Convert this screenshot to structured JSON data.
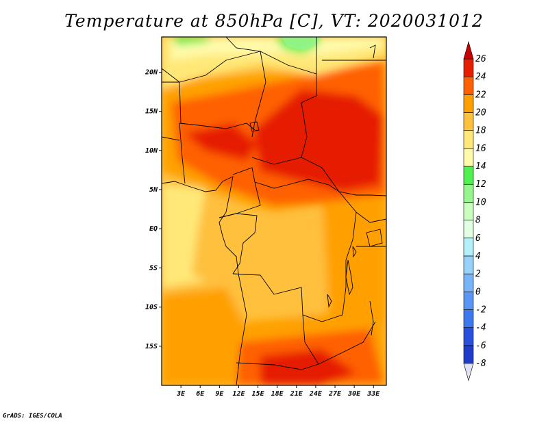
{
  "title": "Temperature at 850hPa [C], VT: 2020031012",
  "credit": "GrADS: IGES/COLA",
  "map": {
    "region": "Central Africa",
    "lon_range": [
      0,
      35
    ],
    "lat_range": [
      -20,
      24.5
    ],
    "lon_ticks": [
      {
        "value": 3,
        "label": "3E"
      },
      {
        "value": 6,
        "label": "6E"
      },
      {
        "value": 9,
        "label": "9E"
      },
      {
        "value": 12,
        "label": "12E"
      },
      {
        "value": 15,
        "label": "15E"
      },
      {
        "value": 18,
        "label": "18E"
      },
      {
        "value": 21,
        "label": "21E"
      },
      {
        "value": 24,
        "label": "24E"
      },
      {
        "value": 27,
        "label": "27E"
      },
      {
        "value": 30,
        "label": "30E"
      },
      {
        "value": 33,
        "label": "33E"
      }
    ],
    "lat_ticks": [
      {
        "value": 20,
        "label": "20N"
      },
      {
        "value": 15,
        "label": "15N"
      },
      {
        "value": 10,
        "label": "10N"
      },
      {
        "value": 5,
        "label": "5N"
      },
      {
        "value": 0,
        "label": "EQ"
      },
      {
        "value": -5,
        "label": "5S"
      },
      {
        "value": -10,
        "label": "10S"
      },
      {
        "value": -15,
        "label": "15S"
      }
    ]
  },
  "colorbar": {
    "levels": [
      {
        "label": "-8",
        "color": "#0a0a78"
      },
      {
        "label": "-6",
        "color": "#1e3cc8"
      },
      {
        "label": "-4",
        "color": "#2850dc"
      },
      {
        "label": "-2",
        "color": "#3c78ee"
      },
      {
        "label": "0",
        "color": "#5a96f5"
      },
      {
        "label": "2",
        "color": "#78b4fa"
      },
      {
        "label": "4",
        "color": "#96d2fa"
      },
      {
        "label": "6",
        "color": "#b4f0fa"
      },
      {
        "label": "8",
        "color": "#e1ffe1"
      },
      {
        "label": "10",
        "color": "#c8ffbe"
      },
      {
        "label": "12",
        "color": "#96f58c"
      },
      {
        "label": "14",
        "color": "#50f050"
      },
      {
        "label": "16",
        "color": "#fffaaa"
      },
      {
        "label": "18",
        "color": "#ffe878"
      },
      {
        "label": "20",
        "color": "#ffc03c"
      },
      {
        "label": "22",
        "color": "#ffa000"
      },
      {
        "label": "24",
        "color": "#ff6000"
      },
      {
        "label": "26",
        "color": "#e61e00"
      }
    ],
    "under_color": "#e1e1f5",
    "over_color": "#c80000"
  },
  "field": {
    "description_units": "degC",
    "palette_by_value": {
      "14": "#50f050",
      "16": "#fffaaa",
      "18": "#ffe878",
      "20": "#ffc03c",
      "22": "#ffa000",
      "24": "#ff6000",
      "26": "#e61e00"
    }
  }
}
